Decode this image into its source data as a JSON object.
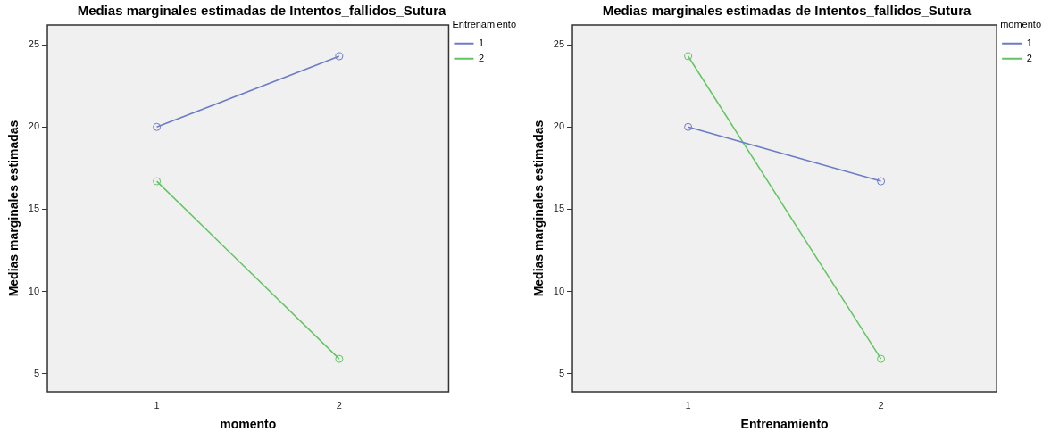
{
  "chart_data": [
    {
      "type": "line",
      "title": "Medias marginales estimadas de Intentos_fallidos_Sutura",
      "xlabel": "momento",
      "ylabel": "Medias marginales estimadas",
      "legend_title": "Entrenamiento",
      "legend": "top right",
      "marker": "circle",
      "categories": [
        "1",
        "2"
      ],
      "ylim": [
        3.9,
        26.2
      ],
      "yticks": [
        5,
        10,
        15,
        20,
        25
      ],
      "series": [
        {
          "name": "1",
          "color": "#6c7bc6",
          "values": [
            20,
            24.3
          ]
        },
        {
          "name": "2",
          "color": "#62c462",
          "values": [
            16.7,
            5.9
          ]
        }
      ]
    },
    {
      "type": "line",
      "title": "Medias marginales estimadas de Intentos_fallidos_Sutura",
      "xlabel": "Entrenamiento",
      "ylabel": "Medias marginales estimadas",
      "legend_title": "momento",
      "legend": "top right",
      "marker": "circle",
      "categories": [
        "1",
        "2"
      ],
      "ylim": [
        3.9,
        26.2
      ],
      "yticks": [
        5,
        10,
        15,
        20,
        25
      ],
      "series": [
        {
          "name": "1",
          "color": "#6c7bc6",
          "values": [
            20,
            16.7
          ]
        },
        {
          "name": "2",
          "color": "#62c462",
          "values": [
            24.3,
            5.9
          ]
        }
      ]
    }
  ]
}
